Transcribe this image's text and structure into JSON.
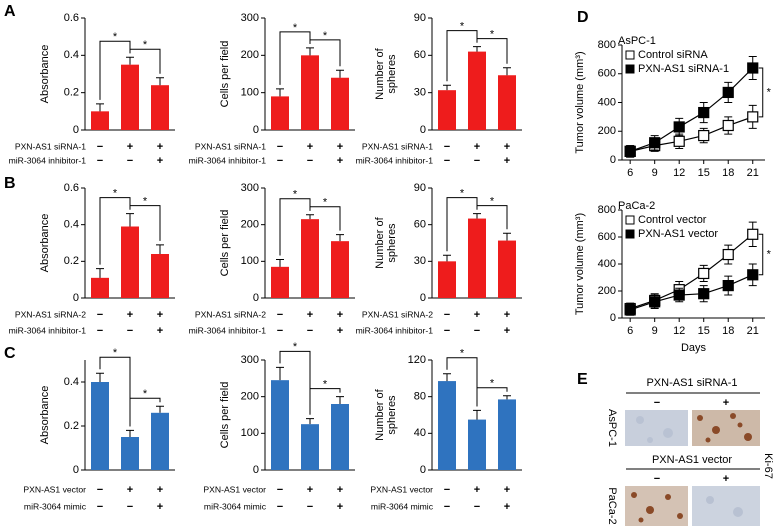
{
  "panel_labels": [
    "A",
    "B",
    "C",
    "D",
    "E"
  ],
  "chart_data": [
    {
      "type": "bar",
      "ylabel": [
        "Absorbance"
      ],
      "categories": [
        null,
        null,
        null
      ],
      "values": [
        0.1,
        0.35,
        0.24
      ],
      "errors": [
        0.04,
        0.04,
        0.04
      ],
      "color": "#ee1c1c",
      "ylim": [
        0,
        0.6
      ],
      "yticks": [
        0,
        0.2,
        0.4,
        0.6
      ],
      "significance": [
        "*",
        "*"
      ],
      "conditions": [
        {
          "label": "PXN-AS1 siRNA-1",
          "signs": [
            "−",
            "+",
            "+"
          ]
        },
        {
          "label": "miR-3064 inhibitor-1",
          "signs": [
            "−",
            "−",
            "+"
          ]
        }
      ]
    },
    {
      "type": "bar",
      "ylabel": [
        "Cells per field"
      ],
      "categories": [
        null,
        null,
        null
      ],
      "values": [
        90,
        200,
        140
      ],
      "errors": [
        20,
        20,
        20
      ],
      "color": "#ee1c1c",
      "ylim": [
        0,
        300
      ],
      "yticks": [
        0,
        100,
        200,
        300
      ],
      "significance": [
        "*",
        "*"
      ],
      "conditions": [
        {
          "label": "PXN-AS1 siRNA-1",
          "signs": [
            "−",
            "+",
            "+"
          ]
        },
        {
          "label": "miR-3064 inhibitor-1",
          "signs": [
            "−",
            "−",
            "+"
          ]
        }
      ]
    },
    {
      "type": "bar",
      "ylabel": [
        "Number of",
        "spheres"
      ],
      "categories": [
        null,
        null,
        null
      ],
      "values": [
        32,
        63,
        44
      ],
      "errors": [
        4,
        4,
        6
      ],
      "color": "#ee1c1c",
      "ylim": [
        0,
        90
      ],
      "yticks": [
        0,
        30,
        60,
        90
      ],
      "significance": [
        "*",
        "*"
      ],
      "conditions": [
        {
          "label": "PXN-AS1 siRNA-1",
          "signs": [
            "−",
            "+",
            "+"
          ]
        },
        {
          "label": "miR-3064 inhibitor-1",
          "signs": [
            "−",
            "−",
            "+"
          ]
        }
      ]
    },
    {
      "type": "bar",
      "ylabel": [
        "Absorbance"
      ],
      "categories": [
        null,
        null,
        null
      ],
      "values": [
        0.11,
        0.39,
        0.24
      ],
      "errors": [
        0.05,
        0.07,
        0.05
      ],
      "color": "#ee1c1c",
      "ylim": [
        0,
        0.6
      ],
      "yticks": [
        0,
        0.2,
        0.4,
        0.6
      ],
      "significance": [
        "*",
        "*"
      ],
      "conditions": [
        {
          "label": "PXN-AS1 siRNA-2",
          "signs": [
            "−",
            "+",
            "+"
          ]
        },
        {
          "label": "miR-3064 inhibitor-1",
          "signs": [
            "−",
            "−",
            "+"
          ]
        }
      ]
    },
    {
      "type": "bar",
      "ylabel": [
        "Cells per field"
      ],
      "categories": [
        null,
        null,
        null
      ],
      "values": [
        85,
        215,
        155
      ],
      "errors": [
        20,
        12,
        18
      ],
      "color": "#ee1c1c",
      "ylim": [
        0,
        300
      ],
      "yticks": [
        0,
        100,
        200,
        300
      ],
      "significance": [
        "*",
        "*"
      ],
      "conditions": [
        {
          "label": "PXN-AS1 siRNA-2",
          "signs": [
            "−",
            "+",
            "+"
          ]
        },
        {
          "label": "miR-3064 inhibitor-1",
          "signs": [
            "−",
            "−",
            "+"
          ]
        }
      ]
    },
    {
      "type": "bar",
      "ylabel": [
        "Number of",
        "spheres"
      ],
      "categories": [
        null,
        null,
        null
      ],
      "values": [
        30,
        65,
        47
      ],
      "errors": [
        5,
        4,
        6
      ],
      "color": "#ee1c1c",
      "ylim": [
        0,
        90
      ],
      "yticks": [
        0,
        30,
        60,
        90
      ],
      "significance": [
        "*",
        "*"
      ],
      "conditions": [
        {
          "label": "PXN-AS1 siRNA-2",
          "signs": [
            "−",
            "+",
            "+"
          ]
        },
        {
          "label": "miR-3064 inhibitor-1",
          "signs": [
            "−",
            "−",
            "+"
          ]
        }
      ]
    },
    {
      "type": "bar",
      "ylabel": [
        "Absorbance"
      ],
      "categories": [
        null,
        null,
        null
      ],
      "values": [
        0.4,
        0.15,
        0.26
      ],
      "errors": [
        0.04,
        0.03,
        0.03
      ],
      "color": "#2f73bf",
      "ylim": [
        0,
        0.5
      ],
      "yticks": [
        0,
        0.2,
        0.4
      ],
      "significance": [
        "*",
        "*"
      ],
      "conditions": [
        {
          "label": "PXN-AS1 vector",
          "signs": [
            "−",
            "+",
            "+"
          ]
        },
        {
          "label": "miR-3064 mimic",
          "signs": [
            "−",
            "−",
            "+"
          ]
        }
      ]
    },
    {
      "type": "bar",
      "ylabel": [
        "Cells per field"
      ],
      "categories": [
        null,
        null,
        null
      ],
      "values": [
        245,
        125,
        180
      ],
      "errors": [
        35,
        15,
        20
      ],
      "color": "#2f73bf",
      "ylim": [
        0,
        300
      ],
      "yticks": [
        0,
        100,
        200,
        300
      ],
      "significance": [
        "*",
        "*"
      ],
      "conditions": [
        {
          "label": "PXN-AS1 vector",
          "signs": [
            "−",
            "+",
            "+"
          ]
        },
        {
          "label": "miR-3064 mimic",
          "signs": [
            "−",
            "−",
            "+"
          ]
        }
      ]
    },
    {
      "type": "bar",
      "ylabel": [
        "Number of",
        "spheres"
      ],
      "categories": [
        null,
        null,
        null
      ],
      "values": [
        97,
        55,
        77
      ],
      "errors": [
        8,
        10,
        4
      ],
      "color": "#2f73bf",
      "ylim": [
        0,
        120
      ],
      "yticks": [
        0,
        40,
        80,
        120
      ],
      "significance": [
        "*",
        "*"
      ],
      "conditions": [
        {
          "label": "PXN-AS1 vector",
          "signs": [
            "−",
            "+",
            "+"
          ]
        },
        {
          "label": "miR-3064 mimic",
          "signs": [
            "−",
            "−",
            "+"
          ]
        }
      ]
    },
    {
      "type": "line",
      "title": "AsPC-1",
      "ylabel": "Tumor volume (mm³)",
      "x": [
        6,
        9,
        12,
        15,
        18,
        21
      ],
      "xlim": [
        5,
        22.5
      ],
      "xticks": [
        6,
        9,
        12,
        15,
        18,
        21
      ],
      "ylim": [
        0,
        800
      ],
      "yticks": [
        0,
        200,
        400,
        600,
        800
      ],
      "significance": "*",
      "series": [
        {
          "name": "Control  siRNA",
          "marker": "open",
          "color": "#000000",
          "values": [
            60,
            100,
            130,
            170,
            240,
            300
          ],
          "errors": [
            40,
            40,
            50,
            50,
            60,
            80
          ]
        },
        {
          "name": "PXN-AS1 siRNA-1",
          "marker": "filled",
          "color": "#000000",
          "values": [
            60,
            120,
            230,
            330,
            470,
            640
          ],
          "errors": [
            40,
            50,
            60,
            70,
            70,
            80
          ]
        }
      ]
    },
    {
      "type": "line",
      "title": "PaCa-2",
      "ylabel": "Tumor volume (mm³)",
      "xlabel": "Days",
      "x": [
        6,
        9,
        12,
        15,
        18,
        21
      ],
      "xlim": [
        5,
        22.5
      ],
      "xticks": [
        6,
        9,
        12,
        15,
        18,
        21
      ],
      "ylim": [
        0,
        800
      ],
      "yticks": [
        0,
        200,
        400,
        600,
        800
      ],
      "significance": "*",
      "series": [
        {
          "name": "Control vector",
          "marker": "open",
          "color": "#000000",
          "values": [
            70,
            130,
            210,
            330,
            470,
            620
          ],
          "errors": [
            40,
            50,
            60,
            60,
            70,
            90
          ]
        },
        {
          "name": "PXN-AS1 vector",
          "marker": "filled",
          "color": "#000000",
          "values": [
            60,
            120,
            170,
            180,
            240,
            320
          ],
          "errors": [
            40,
            50,
            50,
            60,
            70,
            80
          ]
        }
      ]
    }
  ],
  "panel_e": {
    "top": {
      "title": "PXN-AS1 siRNA-1",
      "signs": [
        "−",
        "+"
      ],
      "cell_line": "AsPC-1"
    },
    "bottom": {
      "title": "PXN-AS1 vector",
      "signs": [
        "−",
        "+"
      ],
      "cell_line": "PaCa-2"
    },
    "stain": "Ki-67"
  }
}
